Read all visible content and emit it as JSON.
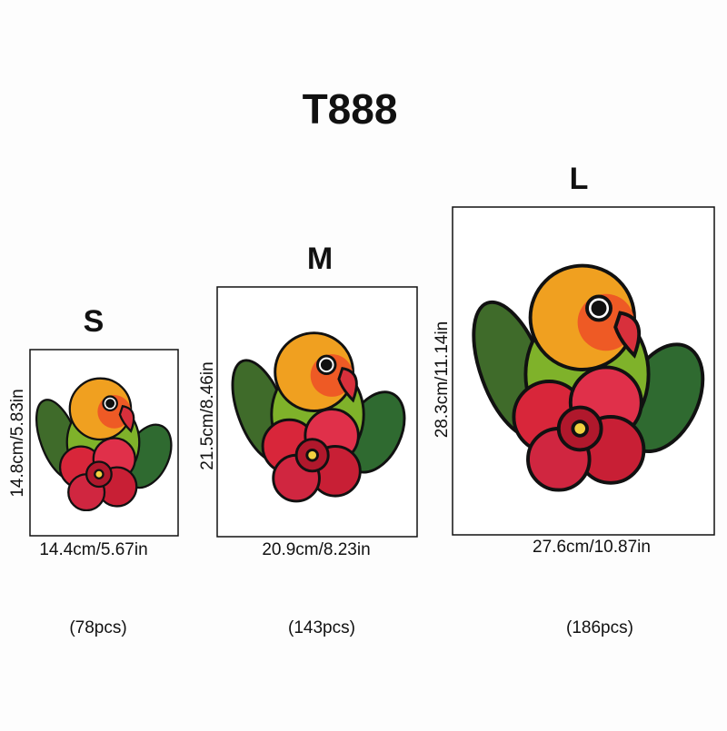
{
  "title": "T888",
  "sizes": [
    {
      "label": "S",
      "height": "14.8cm/5.83in",
      "width": "14.4cm/5.67in",
      "pieces": "(78pcs)"
    },
    {
      "label": "M",
      "height": "21.5cm/8.46in",
      "width": "20.9cm/8.23in",
      "pieces": "(143pcs)"
    },
    {
      "label": "L",
      "height": "28.3cm/11.14in",
      "width": "27.6cm/10.87in",
      "pieces": "(186pcs)"
    }
  ]
}
